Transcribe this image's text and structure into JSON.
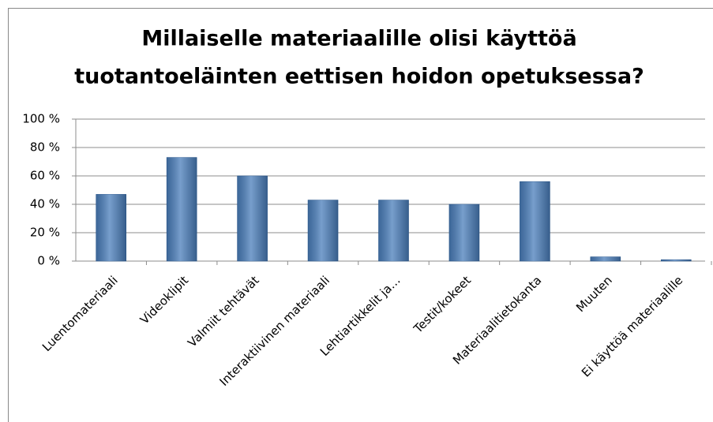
{
  "chart_data": {
    "type": "bar",
    "title": [
      "Millaiselle materiaalille olisi käyttöä",
      "tuotantoeläinten eettisen hoidon opetuksessa?"
    ],
    "categories": [
      "Luentomateriaali",
      "Videoklipit",
      "Valmiit tehtävät",
      "Interaktiivinen materiaali",
      "Lehtiartikkelit ja…",
      "Testit/kokeet",
      "Materiaalitietokanta",
      "Muuten",
      "Ei käyttöä materiaalille"
    ],
    "values": [
      47,
      73,
      60,
      43,
      43,
      40,
      56,
      3,
      1
    ],
    "color": "#4a7ebb",
    "ylim": [
      0,
      100
    ],
    "yticks": [
      {
        "value": 0,
        "label": "0 %"
      },
      {
        "value": 20,
        "label": "20 %"
      },
      {
        "value": 40,
        "label": "40 %"
      },
      {
        "value": 60,
        "label": "60 %"
      },
      {
        "value": 80,
        "label": "80 %"
      },
      {
        "value": 100,
        "label": "100 %"
      }
    ],
    "grid": true
  }
}
